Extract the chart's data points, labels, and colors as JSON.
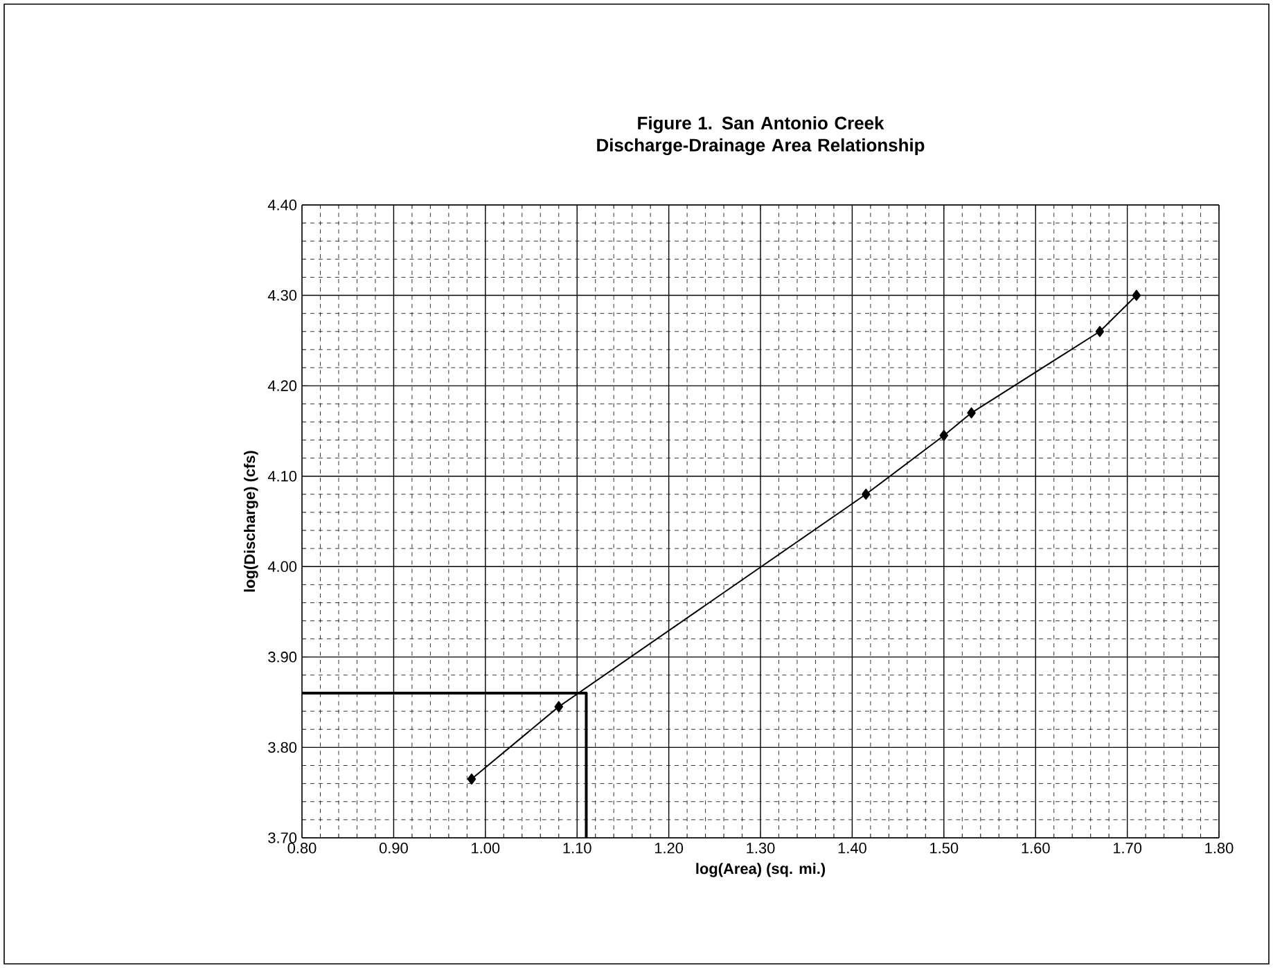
{
  "chart_data": {
    "type": "line",
    "title": "Figure 1. San Antonio Creek\nDischarge-Drainage Area Relationship",
    "xlabel": "log(Area) (sq. mi.)",
    "ylabel": "log(Discharge) (cfs)",
    "xlim": [
      0.8,
      1.8
    ],
    "ylim": [
      3.7,
      4.4
    ],
    "xticks": [
      {
        "value": 0.8,
        "label": "0.80"
      },
      {
        "value": 0.9,
        "label": "0.90"
      },
      {
        "value": 1.0,
        "label": "1.00"
      },
      {
        "value": 1.1,
        "label": "1.10"
      },
      {
        "value": 1.2,
        "label": "1.20"
      },
      {
        "value": 1.3,
        "label": "1.30"
      },
      {
        "value": 1.4,
        "label": "1.40"
      },
      {
        "value": 1.5,
        "label": "1.50"
      },
      {
        "value": 1.6,
        "label": "1.60"
      },
      {
        "value": 1.7,
        "label": "1.70"
      },
      {
        "value": 1.8,
        "label": "1.80"
      }
    ],
    "yticks": [
      {
        "value": 3.7,
        "label": "3.70"
      },
      {
        "value": 3.8,
        "label": "3.80"
      },
      {
        "value": 3.9,
        "label": "3.90"
      },
      {
        "value": 4.0,
        "label": "4.00"
      },
      {
        "value": 4.1,
        "label": "4.10"
      },
      {
        "value": 4.2,
        "label": "4.20"
      },
      {
        "value": 4.3,
        "label": "4.30"
      },
      {
        "value": 4.4,
        "label": "4.40"
      }
    ],
    "grid": true,
    "series": [
      {
        "color": "#000000",
        "marker": "diamond",
        "x": [
          0.985,
          1.08,
          1.415,
          1.5,
          1.53,
          1.67,
          1.71
        ],
        "values": [
          3.765,
          3.845,
          4.08,
          4.145,
          4.17,
          4.26,
          4.3
        ]
      },
      {
        "color": "#000000",
        "marker": "none",
        "x": [
          0.8,
          1.11,
          1.11
        ],
        "values": [
          3.86,
          3.86,
          3.7
        ]
      }
    ]
  }
}
